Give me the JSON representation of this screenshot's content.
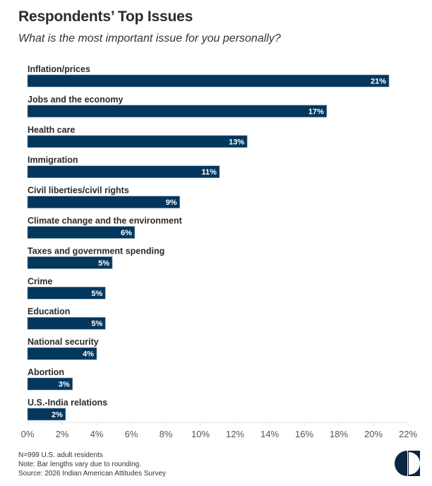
{
  "header": {
    "title": "Respondents’ Top Issues",
    "subtitle": "What is the most important issue for you personally?"
  },
  "chart_data": {
    "type": "bar",
    "orientation": "horizontal",
    "title": "Respondents’ Top Issues",
    "subtitle": "What is the most important issue for you personally?",
    "categories": [
      "Inflation/prices",
      "Jobs and the economy",
      "Health care",
      "Immigration",
      "Civil liberties/civil rights",
      "Climate change and the environment",
      "Taxes and government spending",
      "Crime",
      "Education",
      "National security",
      "Abortion",
      "U.S.-India relations"
    ],
    "values": [
      20.9,
      17.3,
      12.7,
      11.1,
      8.8,
      6.2,
      4.9,
      4.5,
      4.5,
      4.0,
      2.6,
      2.2
    ],
    "data_labels": [
      "21%",
      "17%",
      "13%",
      "11%",
      "9%",
      "6%",
      "5%",
      "5%",
      "5%",
      "4%",
      "3%",
      "2%"
    ],
    "xlabel": "",
    "ylabel": "",
    "xlim": [
      0,
      22
    ],
    "x_ticks": [
      0,
      2,
      4,
      6,
      8,
      10,
      12,
      14,
      16,
      18,
      20,
      22
    ],
    "x_tick_labels": [
      "0%",
      "2%",
      "4%",
      "6%",
      "8%",
      "10%",
      "12%",
      "14%",
      "16%",
      "18%",
      "20%",
      "22%"
    ],
    "grid": false,
    "legend": "none",
    "bar_color": "#04375e"
  },
  "footer": {
    "notes": [
      "N=999 U.S. adult residents",
      "Note: Bar lengths vary due to rounding.",
      "Source: 2026 Indian American Attitudes Survey"
    ],
    "logo": "carnegie-half-circle-logo"
  },
  "colors": {
    "bar": "#04375e",
    "axis": "#e6e6e6",
    "logo": "#0b2545"
  }
}
